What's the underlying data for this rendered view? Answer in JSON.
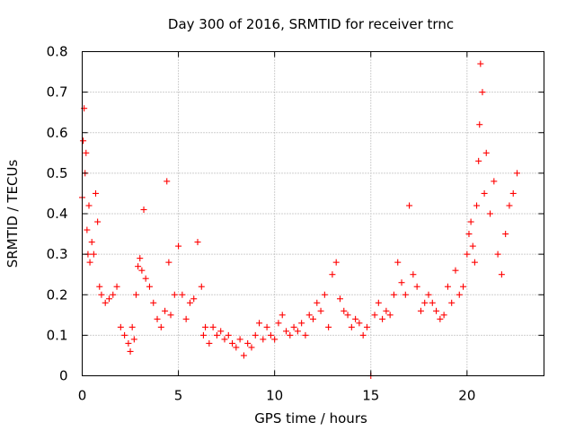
{
  "chart_data": {
    "type": "scatter",
    "title": "Day 300 of 2016, SRMTID for receiver trnc",
    "xlabel": "GPS time / hours",
    "ylabel": "SRMTID / TECUs",
    "xlim": [
      0,
      24
    ],
    "ylim": [
      0,
      0.8
    ],
    "grid": true,
    "marker": "+",
    "color": "#ff0000",
    "xticks": [
      0,
      5,
      10,
      15,
      20
    ],
    "xtick_labels": [
      "0",
      "5",
      "10",
      "15",
      "20"
    ],
    "yticks": [
      0,
      0.1,
      0.2,
      0.3,
      0.4,
      0.5,
      0.6,
      0.7,
      0.8
    ],
    "ytick_labels": [
      "0",
      "0.1",
      "0.2",
      "0.3",
      "0.4",
      "0.5",
      "0.6",
      "0.7",
      "0.8"
    ],
    "series": [
      {
        "name": "SRMTID",
        "x": [
          0.0,
          0.05,
          0.1,
          0.15,
          0.2,
          0.25,
          0.3,
          0.35,
          0.4,
          0.5,
          0.6,
          0.7,
          0.8,
          0.9,
          1.0,
          1.2,
          1.4,
          1.6,
          1.8,
          2.0,
          2.2,
          2.4,
          2.5,
          2.6,
          2.7,
          2.8,
          2.9,
          3.0,
          3.1,
          3.2,
          3.3,
          3.5,
          3.7,
          3.9,
          4.1,
          4.3,
          4.4,
          4.5,
          4.6,
          4.8,
          5.0,
          5.2,
          5.4,
          5.6,
          5.8,
          6.0,
          6.2,
          6.3,
          6.4,
          6.6,
          6.8,
          7.0,
          7.2,
          7.4,
          7.6,
          7.8,
          8.0,
          8.2,
          8.4,
          8.6,
          8.8,
          9.0,
          9.2,
          9.4,
          9.6,
          9.8,
          10.0,
          10.2,
          10.4,
          10.6,
          10.8,
          11.0,
          11.2,
          11.4,
          11.6,
          11.8,
          12.0,
          12.2,
          12.4,
          12.6,
          12.8,
          13.0,
          13.2,
          13.4,
          13.6,
          13.8,
          14.0,
          14.2,
          14.4,
          14.6,
          14.8,
          15.0,
          15.2,
          15.4,
          15.6,
          15.8,
          16.0,
          16.2,
          16.4,
          16.6,
          16.8,
          17.0,
          17.2,
          17.4,
          17.6,
          17.8,
          18.0,
          18.2,
          18.4,
          18.6,
          18.8,
          19.0,
          19.2,
          19.4,
          19.6,
          19.8,
          20.0,
          20.1,
          20.2,
          20.3,
          20.4,
          20.5,
          20.6,
          20.65,
          20.7,
          20.8,
          20.9,
          21.0,
          21.2,
          21.4,
          21.6,
          21.8,
          22.0,
          22.2,
          22.4,
          22.6
        ],
        "y": [
          0.44,
          0.58,
          0.66,
          0.5,
          0.55,
          0.36,
          0.3,
          0.42,
          0.28,
          0.33,
          0.3,
          0.45,
          0.38,
          0.22,
          0.2,
          0.18,
          0.19,
          0.2,
          0.22,
          0.12,
          0.1,
          0.08,
          0.06,
          0.12,
          0.09,
          0.2,
          0.27,
          0.29,
          0.26,
          0.41,
          0.24,
          0.22,
          0.18,
          0.14,
          0.12,
          0.16,
          0.48,
          0.28,
          0.15,
          0.2,
          0.32,
          0.2,
          0.14,
          0.18,
          0.19,
          0.33,
          0.22,
          0.1,
          0.12,
          0.08,
          0.12,
          0.1,
          0.11,
          0.09,
          0.1,
          0.08,
          0.07,
          0.09,
          0.05,
          0.08,
          0.07,
          0.1,
          0.13,
          0.09,
          0.12,
          0.1,
          0.09,
          0.13,
          0.15,
          0.11,
          0.1,
          0.12,
          0.11,
          0.13,
          0.1,
          0.15,
          0.14,
          0.18,
          0.16,
          0.2,
          0.12,
          0.25,
          0.28,
          0.19,
          0.16,
          0.15,
          0.12,
          0.14,
          0.13,
          0.1,
          0.12,
          0.0,
          0.15,
          0.18,
          0.14,
          0.16,
          0.15,
          0.2,
          0.28,
          0.23,
          0.2,
          0.42,
          0.25,
          0.22,
          0.16,
          0.18,
          0.2,
          0.18,
          0.16,
          0.14,
          0.15,
          0.22,
          0.18,
          0.26,
          0.2,
          0.22,
          0.3,
          0.35,
          0.38,
          0.32,
          0.28,
          0.42,
          0.53,
          0.62,
          0.77,
          0.7,
          0.45,
          0.55,
          0.4,
          0.48,
          0.3,
          0.25,
          0.35,
          0.42,
          0.45,
          0.5
        ]
      }
    ]
  }
}
